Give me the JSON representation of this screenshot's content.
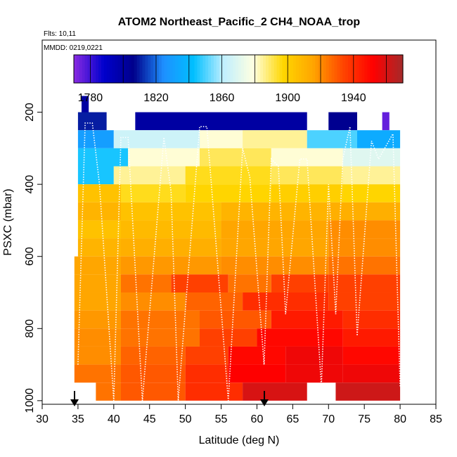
{
  "chart_data": {
    "type": "heatmap",
    "title": "ATOM2 Northeast_Pacific_2 CH4_NOAA_trop",
    "flights_note": "Flts: 10,11",
    "date_note": "MMDD: 0219,0221",
    "xlabel": "Latitude (deg N)",
    "ylabel": "PSXC (mbar)",
    "xlim": [
      30,
      85
    ],
    "ylim": [
      1010,
      0
    ],
    "x_ticks": [
      "30",
      "35",
      "40",
      "45",
      "50",
      "55",
      "60",
      "65",
      "70",
      "75",
      "80",
      "85"
    ],
    "y_ticks": [
      "200",
      "400",
      "600",
      "800",
      "1000"
    ],
    "colorbar": {
      "range": [
        1770,
        1970
      ],
      "tick_labels": [
        "1780",
        "1820",
        "1860",
        "1900",
        "1940"
      ],
      "tick_values": [
        1780,
        1820,
        1860,
        1900,
        1940
      ],
      "colors": [
        "#8a2be2",
        "#0000cd",
        "#00008b",
        "#1e90ff",
        "#00bfff",
        "#bfefff",
        "#ffffe0",
        "#ffd700",
        "#ffa500",
        "#ff4500",
        "#ff0000",
        "#a52a2a"
      ]
    },
    "pressure_levels": [
      200,
      250,
      300,
      350,
      400,
      450,
      500,
      550,
      600,
      650,
      700,
      750,
      800,
      850,
      900,
      950,
      1000
    ],
    "curtain_rows": [
      {
        "p": 180,
        "segments": [
          [
            35.5,
            36.5,
            1800
          ]
        ]
      },
      {
        "p": 225,
        "segments": [
          [
            35,
            39,
            1810
          ],
          [
            43,
            67,
            1800
          ],
          [
            70,
            74,
            1805
          ],
          [
            77.5,
            78.5,
            1775
          ]
        ]
      },
      {
        "p": 275,
        "segments": [
          [
            35,
            40,
            1830
          ],
          [
            40,
            52,
            1865
          ],
          [
            52,
            58,
            1880
          ],
          [
            58,
            67,
            1885
          ],
          [
            67,
            74,
            1850
          ],
          [
            74,
            80,
            1835
          ]
        ]
      },
      {
        "p": 325,
        "segments": [
          [
            35,
            42,
            1845
          ],
          [
            42,
            52,
            1880
          ],
          [
            52,
            62,
            1890
          ],
          [
            62,
            72,
            1880
          ],
          [
            72,
            80,
            1870
          ]
        ]
      },
      {
        "p": 375,
        "segments": [
          [
            35,
            40,
            1845
          ],
          [
            40,
            50,
            1885
          ],
          [
            50,
            62,
            1895
          ],
          [
            62,
            72,
            1890
          ],
          [
            72,
            80,
            1885
          ]
        ]
      },
      {
        "p": 425,
        "segments": [
          [
            35,
            41,
            1905
          ],
          [
            41,
            50,
            1895
          ],
          [
            50,
            62,
            1898
          ],
          [
            62,
            72,
            1900
          ],
          [
            72,
            80,
            1898
          ]
        ]
      },
      {
        "p": 475,
        "segments": [
          [
            35,
            41,
            1910
          ],
          [
            41,
            55,
            1905
          ],
          [
            55,
            70,
            1910
          ],
          [
            70,
            80,
            1912
          ]
        ]
      },
      {
        "p": 525,
        "segments": [
          [
            35,
            41,
            1905
          ],
          [
            41,
            55,
            1908
          ],
          [
            55,
            70,
            1915
          ],
          [
            70,
            80,
            1920
          ]
        ]
      },
      {
        "p": 575,
        "segments": [
          [
            35,
            41,
            1910
          ],
          [
            41,
            55,
            1912
          ],
          [
            55,
            70,
            1915
          ],
          [
            70,
            80,
            1920
          ]
        ]
      },
      {
        "p": 625,
        "segments": [
          [
            34.5,
            41,
            1915
          ],
          [
            41,
            55,
            1918
          ],
          [
            55,
            70,
            1920
          ],
          [
            70,
            80,
            1925
          ]
        ]
      },
      {
        "p": 675,
        "segments": [
          [
            34.5,
            41,
            1915
          ],
          [
            41,
            48,
            1925
          ],
          [
            48,
            56,
            1935
          ],
          [
            56,
            62,
            1925
          ],
          [
            62,
            70,
            1935
          ],
          [
            70,
            80,
            1935
          ]
        ]
      },
      {
        "p": 725,
        "segments": [
          [
            34.5,
            41,
            1915
          ],
          [
            41,
            50,
            1920
          ],
          [
            50,
            58,
            1928
          ],
          [
            58,
            70,
            1940
          ],
          [
            70,
            80,
            1935
          ]
        ]
      },
      {
        "p": 775,
        "segments": [
          [
            34.5,
            41,
            1918
          ],
          [
            41,
            52,
            1925
          ],
          [
            52,
            62,
            1930
          ],
          [
            62,
            72,
            1945
          ],
          [
            72,
            80,
            1940
          ]
        ]
      },
      {
        "p": 825,
        "segments": [
          [
            34.5,
            41,
            1920
          ],
          [
            41,
            52,
            1925
          ],
          [
            52,
            60,
            1935
          ],
          [
            60,
            72,
            1950
          ],
          [
            72,
            80,
            1945
          ]
        ]
      },
      {
        "p": 875,
        "segments": [
          [
            34.5,
            41,
            1920
          ],
          [
            41,
            50,
            1928
          ],
          [
            50,
            56,
            1935
          ],
          [
            56,
            64,
            1950
          ],
          [
            64,
            72,
            1955
          ],
          [
            72,
            80,
            1950
          ]
        ]
      },
      {
        "p": 925,
        "segments": [
          [
            34.5,
            41,
            1925
          ],
          [
            41,
            50,
            1930
          ],
          [
            50,
            56,
            1940
          ],
          [
            56,
            64,
            1952
          ],
          [
            64,
            72,
            1955
          ],
          [
            72,
            80,
            1955
          ]
        ]
      },
      {
        "p": 975,
        "segments": [
          [
            37.5,
            41,
            1925
          ],
          [
            41,
            50,
            1930
          ],
          [
            50,
            58,
            1940
          ],
          [
            58,
            67,
            1960
          ],
          [
            71,
            80,
            1962
          ]
        ]
      }
    ]
  }
}
